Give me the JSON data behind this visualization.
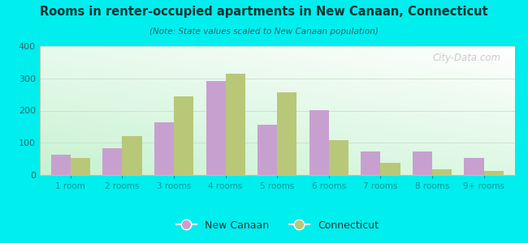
{
  "title": "Rooms in renter-occupied apartments in New Canaan, Connecticut",
  "subtitle": "(Note: State values scaled to New Canaan population)",
  "categories": [
    "1 room",
    "2 rooms",
    "3 rooms",
    "4 rooms",
    "5 rooms",
    "6 rooms",
    "7 rooms",
    "8 rooms",
    "9+ rooms"
  ],
  "new_canaan": [
    63,
    83,
    163,
    293,
    155,
    202,
    72,
    72,
    53
  ],
  "connecticut": [
    53,
    122,
    243,
    314,
    256,
    108,
    38,
    18,
    13
  ],
  "nc_color": "#c8a0d0",
  "ct_color": "#b8c878",
  "ylim": [
    0,
    400
  ],
  "yticks": [
    0,
    100,
    200,
    300,
    400
  ],
  "bg_color": "#00eeee",
  "bar_width": 0.38,
  "legend_nc": "New Canaan",
  "legend_ct": "Connecticut",
  "watermark": "City-Data.com"
}
